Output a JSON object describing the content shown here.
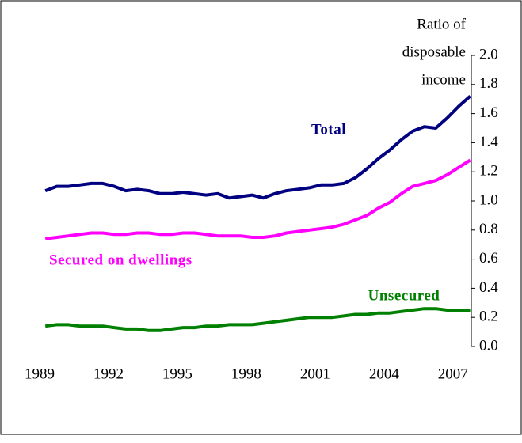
{
  "chart_data": {
    "type": "line",
    "y_axis_label": [
      "Ratio of",
      "disposable",
      "income"
    ],
    "x": [
      1989.25,
      1989.75,
      1990.25,
      1990.75,
      1991.25,
      1991.75,
      1992.25,
      1992.75,
      1993.25,
      1993.75,
      1994.25,
      1994.75,
      1995.25,
      1995.75,
      1996.25,
      1996.75,
      1997.25,
      1997.75,
      1998.25,
      1998.75,
      1999.25,
      1999.75,
      2000.25,
      2000.75,
      2001.25,
      2001.75,
      2002.25,
      2002.75,
      2003.25,
      2003.75,
      2004.25,
      2004.75,
      2005.25,
      2005.75,
      2006.25,
      2006.75,
      2007.25,
      2007.75
    ],
    "series": [
      {
        "name": "Total",
        "color": "#000080",
        "values": [
          1.07,
          1.1,
          1.1,
          1.11,
          1.12,
          1.12,
          1.1,
          1.07,
          1.08,
          1.07,
          1.05,
          1.05,
          1.06,
          1.05,
          1.04,
          1.05,
          1.02,
          1.03,
          1.04,
          1.02,
          1.05,
          1.07,
          1.08,
          1.09,
          1.11,
          1.11,
          1.12,
          1.16,
          1.22,
          1.29,
          1.35,
          1.42,
          1.48,
          1.51,
          1.5,
          1.57,
          1.65,
          1.72
        ]
      },
      {
        "name": "Secured on dwellings",
        "color": "#ff00ff",
        "values": [
          0.74,
          0.75,
          0.76,
          0.77,
          0.78,
          0.78,
          0.77,
          0.77,
          0.78,
          0.78,
          0.77,
          0.77,
          0.78,
          0.78,
          0.77,
          0.76,
          0.76,
          0.76,
          0.75,
          0.75,
          0.76,
          0.78,
          0.79,
          0.8,
          0.81,
          0.82,
          0.84,
          0.87,
          0.9,
          0.95,
          0.99,
          1.05,
          1.1,
          1.12,
          1.14,
          1.18,
          1.23,
          1.28
        ]
      },
      {
        "name": "Unsecured",
        "color": "#008000",
        "values": [
          0.14,
          0.15,
          0.15,
          0.14,
          0.14,
          0.14,
          0.13,
          0.12,
          0.12,
          0.11,
          0.11,
          0.12,
          0.13,
          0.13,
          0.14,
          0.14,
          0.15,
          0.15,
          0.15,
          0.16,
          0.17,
          0.18,
          0.19,
          0.2,
          0.2,
          0.2,
          0.21,
          0.22,
          0.22,
          0.23,
          0.23,
          0.24,
          0.25,
          0.26,
          0.26,
          0.25,
          0.25,
          0.25
        ]
      }
    ],
    "xlim": [
      1989,
      2007.8
    ],
    "xticks": [
      1989,
      1992,
      1995,
      1998,
      2001,
      2004,
      2007
    ],
    "ylim": [
      0,
      2
    ],
    "yticks": [
      {
        "value": 0,
        "label": "0.0"
      },
      {
        "value": 0.2,
        "label": "0.2"
      },
      {
        "value": 0.4,
        "label": "0.4"
      },
      {
        "value": 0.6,
        "label": "0.6"
      },
      {
        "value": 0.8,
        "label": "0.8"
      },
      {
        "value": 1,
        "label": "1.0"
      },
      {
        "value": 1.2,
        "label": "1.2"
      },
      {
        "value": 1.4,
        "label": "1.4"
      },
      {
        "value": 1.6,
        "label": "1.6"
      },
      {
        "value": 1.8,
        "label": "1.8"
      },
      {
        "value": 2,
        "label": "2.0"
      }
    ],
    "y_axis_side": "right"
  }
}
